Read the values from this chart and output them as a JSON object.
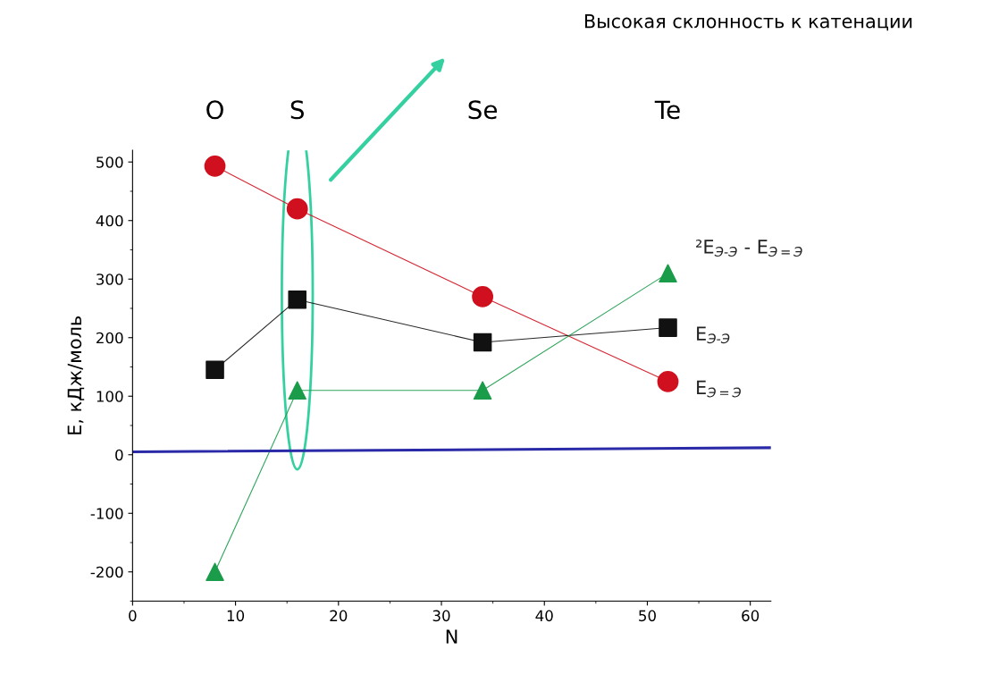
{
  "chart_data": {
    "type": "line",
    "xlabel": "N",
    "ylabel": "E, кДж/моль",
    "x": [
      8,
      16,
      34,
      52
    ],
    "xlim": [
      0,
      62
    ],
    "xticks": [
      0,
      10,
      20,
      30,
      40,
      50,
      60
    ],
    "ylim": [
      -250,
      520
    ],
    "yticks": [
      -200,
      -100,
      0,
      100,
      200,
      300,
      400,
      500
    ],
    "grid": false,
    "legend": false,
    "series": [
      {
        "name": "E$_{Э=Э}$",
        "color": "#d0101e",
        "marker": "circle",
        "values": [
          493,
          420,
          270,
          125
        ]
      },
      {
        "name": "E$_{Э-Э}$",
        "color": "#111111",
        "marker": "square",
        "values": [
          145,
          265,
          192,
          217
        ]
      },
      {
        "name": "²E$_{Э-Э}$ - E$_{Э=Э}$",
        "color": "#1a9c4a",
        "marker": "triangle",
        "values": [
          -200,
          110,
          110,
          310
        ]
      },
      {
        "color": "#2a2aa8",
        "marker": "none",
        "x": [
          0,
          62
        ],
        "values": [
          5,
          12
        ]
      }
    ],
    "annotations": [
      "O",
      "S",
      "Se",
      "Te",
      "Высокая склонность к катенации"
    ]
  }
}
